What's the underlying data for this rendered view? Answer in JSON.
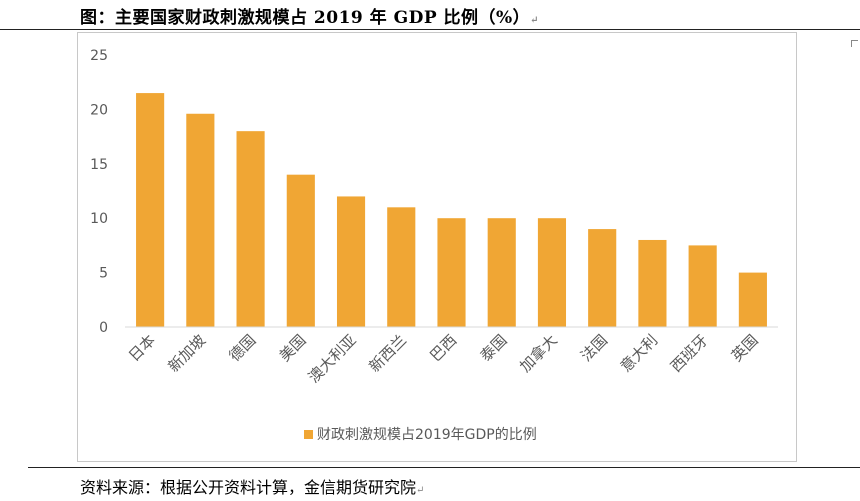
{
  "doc": {
    "figure_title": "图：主要国家财政刺激规模占 2019 年 GDP 比例（%）",
    "source_note": "资料来源：根据公开资料计算，金信期货研究院",
    "para_mark": "↵"
  },
  "colors": {
    "bar": "#F0A634",
    "axis_text": "#595959",
    "axis_line": "#d9d9d9"
  },
  "chart_data": {
    "type": "bar",
    "title": "",
    "xlabel": "",
    "ylabel": "",
    "categories": [
      "日本",
      "新加坡",
      "德国",
      "美国",
      "澳大利亚",
      "新西兰",
      "巴西",
      "泰国",
      "加拿大",
      "法国",
      "意大利",
      "西班牙",
      "英国"
    ],
    "series": [
      {
        "name": "财政刺激规模占2019年GDP的比例",
        "values": [
          21.5,
          19.6,
          18.0,
          14.0,
          12.0,
          11.0,
          10.0,
          10.0,
          10.0,
          9.0,
          8.0,
          7.5,
          5.0
        ]
      }
    ],
    "ylim": [
      0,
      25
    ],
    "yticks": [
      0,
      5,
      10,
      15,
      20,
      25
    ],
    "grid": false,
    "legend_position": "bottom"
  }
}
